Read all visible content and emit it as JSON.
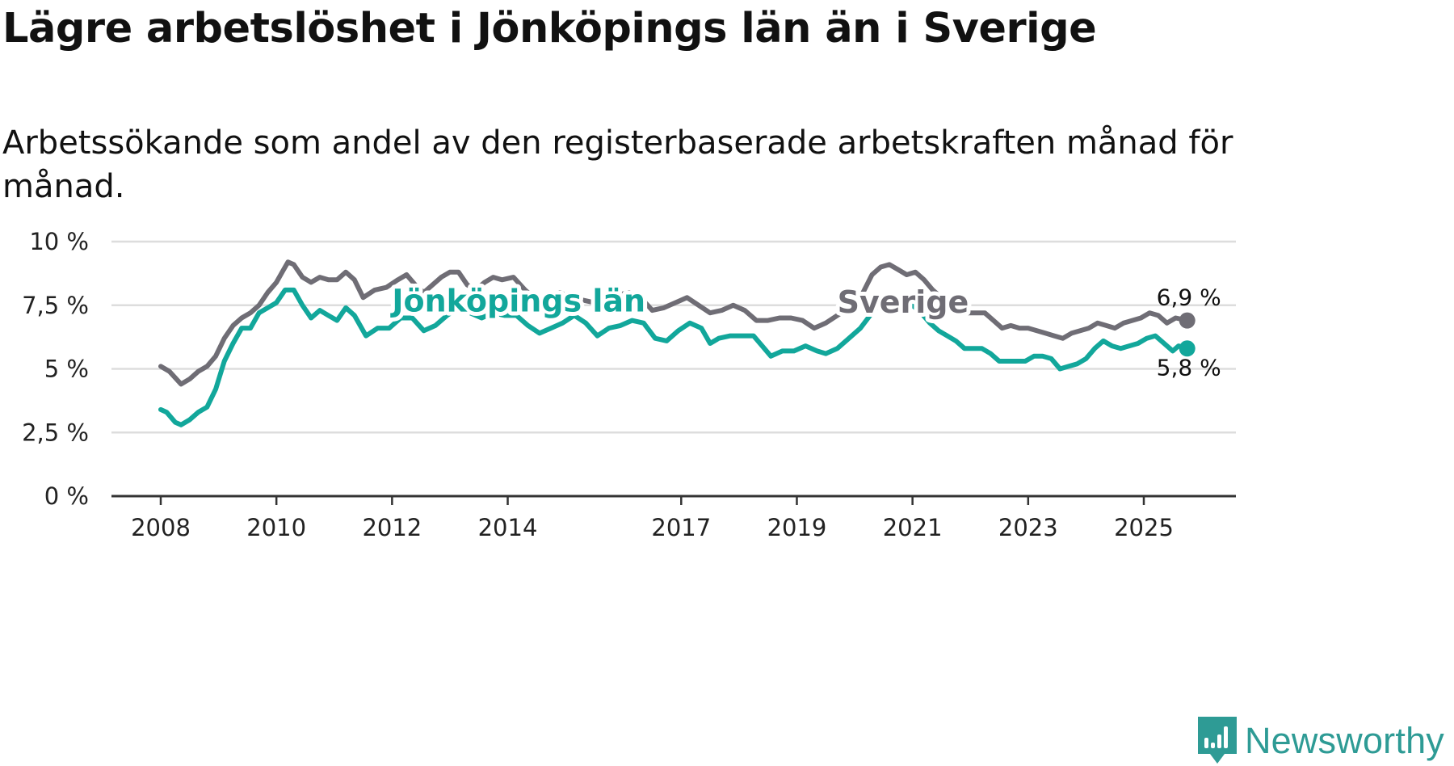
{
  "header": {
    "title": "Lägre arbetslöshet i Jönköpings län än i Sverige",
    "subtitle": "Arbetssökande som andel av den registerbaserade arbetskraften månad för månad."
  },
  "colors": {
    "sverige": "#6f6d75",
    "jonkoping": "#12a79b",
    "grid": "#dddddd",
    "axis": "#333333",
    "logo": "#2e9b95"
  },
  "brand": {
    "name": "Newsworthy",
    "icon": "bar-chart-icon"
  },
  "chart_data": {
    "type": "line",
    "title": "Lägre arbetslöshet i Jönköpings län än i Sverige",
    "xlabel": "",
    "ylabel": "",
    "x_range": [
      2008.0,
      2025.75
    ],
    "ylim": [
      0,
      10
    ],
    "grid": true,
    "y_ticks": [
      {
        "value": 0,
        "label": "0 %"
      },
      {
        "value": 2.5,
        "label": "2,5 %"
      },
      {
        "value": 5,
        "label": "5 %"
      },
      {
        "value": 7.5,
        "label": "7,5 %"
      },
      {
        "value": 10,
        "label": "10 %"
      }
    ],
    "x_ticks": [
      {
        "value": 2008,
        "label": "2008"
      },
      {
        "value": 2010,
        "label": "2010"
      },
      {
        "value": 2012,
        "label": "2012"
      },
      {
        "value": 2014,
        "label": "2014"
      },
      {
        "value": 2017,
        "label": "2017"
      },
      {
        "value": 2019,
        "label": "2019"
      },
      {
        "value": 2021,
        "label": "2021"
      },
      {
        "value": 2023,
        "label": "2023"
      },
      {
        "value": 2025,
        "label": "2025"
      }
    ],
    "series": [
      {
        "name": "Sverige",
        "color": "#6f6d75",
        "label_at": [
          2019.7,
          7.2
        ],
        "end_label": "6,9 %",
        "end_label_position": "above",
        "points": [
          [
            2008.0,
            5.1
          ],
          [
            2008.15,
            4.9
          ],
          [
            2008.35,
            4.4
          ],
          [
            2008.5,
            4.6
          ],
          [
            2008.65,
            4.9
          ],
          [
            2008.8,
            5.1
          ],
          [
            2008.95,
            5.5
          ],
          [
            2009.1,
            6.2
          ],
          [
            2009.25,
            6.7
          ],
          [
            2009.4,
            7.0
          ],
          [
            2009.55,
            7.2
          ],
          [
            2009.7,
            7.5
          ],
          [
            2009.85,
            8.0
          ],
          [
            2010.0,
            8.4
          ],
          [
            2010.1,
            8.8
          ],
          [
            2010.2,
            9.2
          ],
          [
            2010.3,
            9.1
          ],
          [
            2010.45,
            8.6
          ],
          [
            2010.6,
            8.4
          ],
          [
            2010.75,
            8.6
          ],
          [
            2010.9,
            8.5
          ],
          [
            2011.05,
            8.5
          ],
          [
            2011.2,
            8.8
          ],
          [
            2011.35,
            8.5
          ],
          [
            2011.5,
            7.8
          ],
          [
            2011.7,
            8.1
          ],
          [
            2011.9,
            8.2
          ],
          [
            2012.1,
            8.5
          ],
          [
            2012.25,
            8.7
          ],
          [
            2012.4,
            8.3
          ],
          [
            2012.55,
            8.0
          ],
          [
            2012.7,
            8.3
          ],
          [
            2012.85,
            8.6
          ],
          [
            2013.0,
            8.8
          ],
          [
            2013.15,
            8.8
          ],
          [
            2013.3,
            8.3
          ],
          [
            2013.45,
            8.1
          ],
          [
            2013.6,
            8.4
          ],
          [
            2013.75,
            8.6
          ],
          [
            2013.9,
            8.5
          ],
          [
            2014.1,
            8.6
          ],
          [
            2014.3,
            8.1
          ],
          [
            2014.5,
            7.7
          ],
          [
            2014.7,
            7.8
          ],
          [
            2014.9,
            8.0
          ],
          [
            2015.1,
            7.8
          ],
          [
            2015.3,
            7.7
          ],
          [
            2015.5,
            7.6
          ],
          [
            2015.7,
            7.6
          ],
          [
            2015.9,
            7.9
          ],
          [
            2016.1,
            8.0
          ],
          [
            2016.3,
            7.8
          ],
          [
            2016.5,
            7.3
          ],
          [
            2016.7,
            7.4
          ],
          [
            2016.9,
            7.6
          ],
          [
            2017.1,
            7.8
          ],
          [
            2017.3,
            7.5
          ],
          [
            2017.5,
            7.2
          ],
          [
            2017.7,
            7.3
          ],
          [
            2017.9,
            7.5
          ],
          [
            2018.1,
            7.3
          ],
          [
            2018.3,
            6.9
          ],
          [
            2018.5,
            6.9
          ],
          [
            2018.7,
            7.0
          ],
          [
            2018.9,
            7.0
          ],
          [
            2019.1,
            6.9
          ],
          [
            2019.3,
            6.6
          ],
          [
            2019.5,
            6.8
          ],
          [
            2019.7,
            7.1
          ],
          [
            2019.9,
            7.4
          ],
          [
            2020.1,
            7.8
          ],
          [
            2020.3,
            8.7
          ],
          [
            2020.45,
            9.0
          ],
          [
            2020.6,
            9.1
          ],
          [
            2020.75,
            8.9
          ],
          [
            2020.9,
            8.7
          ],
          [
            2021.05,
            8.8
          ],
          [
            2021.2,
            8.5
          ],
          [
            2021.35,
            8.1
          ],
          [
            2021.5,
            7.8
          ],
          [
            2021.65,
            7.7
          ],
          [
            2021.8,
            7.5
          ],
          [
            2021.95,
            7.2
          ],
          [
            2022.1,
            7.2
          ],
          [
            2022.25,
            7.2
          ],
          [
            2022.4,
            6.9
          ],
          [
            2022.55,
            6.6
          ],
          [
            2022.7,
            6.7
          ],
          [
            2022.85,
            6.6
          ],
          [
            2023.0,
            6.6
          ],
          [
            2023.15,
            6.5
          ],
          [
            2023.3,
            6.4
          ],
          [
            2023.45,
            6.3
          ],
          [
            2023.6,
            6.2
          ],
          [
            2023.75,
            6.4
          ],
          [
            2023.9,
            6.5
          ],
          [
            2024.05,
            6.6
          ],
          [
            2024.2,
            6.8
          ],
          [
            2024.35,
            6.7
          ],
          [
            2024.5,
            6.6
          ],
          [
            2024.65,
            6.8
          ],
          [
            2024.8,
            6.9
          ],
          [
            2024.95,
            7.0
          ],
          [
            2025.1,
            7.2
          ],
          [
            2025.25,
            7.1
          ],
          [
            2025.4,
            6.8
          ],
          [
            2025.55,
            7.0
          ],
          [
            2025.75,
            6.9
          ]
        ]
      },
      {
        "name": "Jönköpings län",
        "color": "#12a79b",
        "label_at": [
          2012.0,
          7.25
        ],
        "end_label": "5,8 %",
        "end_label_position": "below",
        "points": [
          [
            2008.0,
            3.4
          ],
          [
            2008.1,
            3.3
          ],
          [
            2008.25,
            2.9
          ],
          [
            2008.35,
            2.8
          ],
          [
            2008.5,
            3.0
          ],
          [
            2008.65,
            3.3
          ],
          [
            2008.8,
            3.5
          ],
          [
            2008.95,
            4.2
          ],
          [
            2009.1,
            5.3
          ],
          [
            2009.25,
            6.0
          ],
          [
            2009.4,
            6.6
          ],
          [
            2009.55,
            6.6
          ],
          [
            2009.7,
            7.2
          ],
          [
            2009.85,
            7.4
          ],
          [
            2010.0,
            7.6
          ],
          [
            2010.15,
            8.1
          ],
          [
            2010.3,
            8.1
          ],
          [
            2010.45,
            7.5
          ],
          [
            2010.6,
            7.0
          ],
          [
            2010.75,
            7.3
          ],
          [
            2010.9,
            7.1
          ],
          [
            2011.05,
            6.9
          ],
          [
            2011.2,
            7.4
          ],
          [
            2011.35,
            7.1
          ],
          [
            2011.55,
            6.3
          ],
          [
            2011.75,
            6.6
          ],
          [
            2011.95,
            6.6
          ],
          [
            2012.15,
            7.0
          ],
          [
            2012.35,
            7.0
          ],
          [
            2012.55,
            6.5
          ],
          [
            2012.75,
            6.7
          ],
          [
            2012.95,
            7.1
          ],
          [
            2013.15,
            7.4
          ],
          [
            2013.35,
            7.2
          ],
          [
            2013.55,
            7.0
          ],
          [
            2013.75,
            7.2
          ],
          [
            2013.95,
            7.1
          ],
          [
            2014.15,
            7.1
          ],
          [
            2014.35,
            6.7
          ],
          [
            2014.55,
            6.4
          ],
          [
            2014.75,
            6.6
          ],
          [
            2014.95,
            6.8
          ],
          [
            2015.15,
            7.1
          ],
          [
            2015.35,
            6.8
          ],
          [
            2015.55,
            6.3
          ],
          [
            2015.75,
            6.6
          ],
          [
            2015.95,
            6.7
          ],
          [
            2016.15,
            6.9
          ],
          [
            2016.35,
            6.8
          ],
          [
            2016.55,
            6.2
          ],
          [
            2016.75,
            6.1
          ],
          [
            2016.95,
            6.5
          ],
          [
            2017.15,
            6.8
          ],
          [
            2017.35,
            6.6
          ],
          [
            2017.5,
            6.0
          ],
          [
            2017.65,
            6.2
          ],
          [
            2017.85,
            6.3
          ],
          [
            2018.05,
            6.3
          ],
          [
            2018.25,
            6.3
          ],
          [
            2018.4,
            5.9
          ],
          [
            2018.55,
            5.5
          ],
          [
            2018.75,
            5.7
          ],
          [
            2018.95,
            5.7
          ],
          [
            2019.15,
            5.9
          ],
          [
            2019.35,
            5.7
          ],
          [
            2019.5,
            5.6
          ],
          [
            2019.7,
            5.8
          ],
          [
            2019.9,
            6.2
          ],
          [
            2020.1,
            6.6
          ],
          [
            2020.3,
            7.2
          ],
          [
            2020.5,
            7.7
          ],
          [
            2020.7,
            7.6
          ],
          [
            2020.85,
            7.4
          ],
          [
            2021.0,
            7.5
          ],
          [
            2021.15,
            7.2
          ],
          [
            2021.3,
            6.8
          ],
          [
            2021.45,
            6.5
          ],
          [
            2021.6,
            6.3
          ],
          [
            2021.75,
            6.1
          ],
          [
            2021.9,
            5.8
          ],
          [
            2022.05,
            5.8
          ],
          [
            2022.2,
            5.8
          ],
          [
            2022.35,
            5.6
          ],
          [
            2022.5,
            5.3
          ],
          [
            2022.65,
            5.3
          ],
          [
            2022.8,
            5.3
          ],
          [
            2022.95,
            5.3
          ],
          [
            2023.1,
            5.5
          ],
          [
            2023.25,
            5.5
          ],
          [
            2023.4,
            5.4
          ],
          [
            2023.55,
            5.0
          ],
          [
            2023.7,
            5.1
          ],
          [
            2023.85,
            5.2
          ],
          [
            2024.0,
            5.4
          ],
          [
            2024.15,
            5.8
          ],
          [
            2024.3,
            6.1
          ],
          [
            2024.45,
            5.9
          ],
          [
            2024.6,
            5.8
          ],
          [
            2024.75,
            5.9
          ],
          [
            2024.9,
            6.0
          ],
          [
            2025.05,
            6.2
          ],
          [
            2025.2,
            6.3
          ],
          [
            2025.35,
            6.0
          ],
          [
            2025.5,
            5.7
          ],
          [
            2025.6,
            5.9
          ],
          [
            2025.75,
            5.8
          ]
        ]
      }
    ]
  }
}
